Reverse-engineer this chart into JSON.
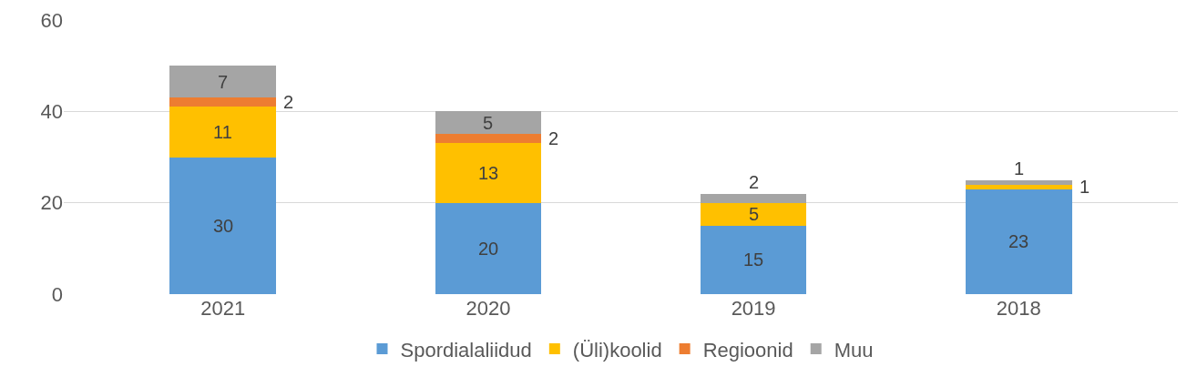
{
  "chart_data": {
    "type": "bar",
    "stacked": true,
    "categories": [
      "2021",
      "2020",
      "2019",
      "2018"
    ],
    "series": [
      {
        "name": "Spordialaliidud",
        "color": "#5b9bd5",
        "values": [
          30,
          20,
          15,
          23
        ]
      },
      {
        "name": "(Üli)koolid",
        "color": "#ffc000",
        "values": [
          11,
          13,
          5,
          1
        ]
      },
      {
        "name": "Regioonid",
        "color": "#ed7d31",
        "values": [
          2,
          2,
          null,
          null
        ]
      },
      {
        "name": "Muu",
        "color": "#a5a5a5",
        "values": [
          7,
          5,
          2,
          1
        ]
      }
    ],
    "data_labels": true,
    "ylim": [
      0,
      60
    ],
    "yticks": [
      0,
      20,
      40,
      60
    ],
    "grid": "y",
    "legend": "bottom"
  }
}
